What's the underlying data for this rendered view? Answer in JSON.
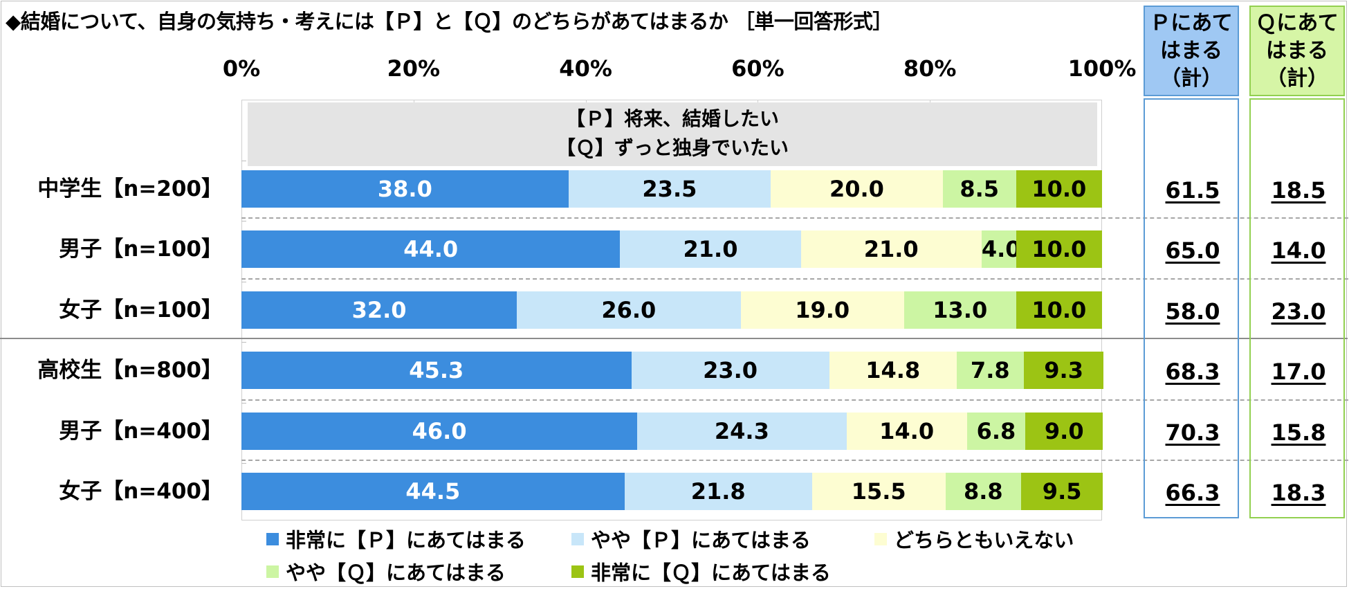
{
  "title": "◆結婚について、自身の気持ち・考えには【Ｐ】と【Ｑ】のどちらがあてはまるか ［単一回答形式］",
  "colors": {
    "p_strong": "#3c8dde",
    "p_some": "#c8e6f9",
    "neutral": "#fdfdd2",
    "q_some": "#ccf5a3",
    "q_strong": "#9cc414",
    "p_total_border": "#5b9bd5",
    "p_total_head": "#9fc8f3",
    "q_total_border": "#92d050",
    "q_total_head": "#d6f5a6"
  },
  "plot_title": [
    "【Ｐ】将来、結婚したい",
    "【Ｑ】ずっと独身でいたい"
  ],
  "totals_headers": {
    "p": [
      "Ｐにあて",
      "はまる",
      "（計）"
    ],
    "q": [
      "Ｑにあて",
      "はまる",
      "（計）"
    ]
  },
  "chart_data": {
    "type": "bar",
    "orientation": "horizontal",
    "stacked": true,
    "xlim": [
      0,
      100
    ],
    "x_ticks": [
      "0%",
      "20%",
      "40%",
      "60%",
      "80%",
      "100%"
    ],
    "categories": [
      "中学生【n=200】",
      "男子【n=100】",
      "女子【n=100】",
      "高校生【n=800】",
      "男子【n=400】",
      "女子【n=400】"
    ],
    "series": [
      {
        "name": "非常に【Ｐ】にあてはまる",
        "values": [
          38.0,
          44.0,
          32.0,
          45.3,
          46.0,
          44.5
        ],
        "labels": [
          "38.0",
          "44.0",
          "32.0",
          "45.3",
          "46.0",
          "44.5"
        ]
      },
      {
        "name": "やや【Ｐ】にあてはまる",
        "values": [
          23.5,
          21.0,
          26.0,
          23.0,
          24.3,
          21.8
        ],
        "labels": [
          "23.5",
          "21.0",
          "26.0",
          "23.0",
          "24.3",
          "21.8"
        ]
      },
      {
        "name": "どちらともいえない",
        "values": [
          20.0,
          21.0,
          19.0,
          14.8,
          14.0,
          15.5
        ],
        "labels": [
          "20.0",
          "21.0",
          "19.0",
          "14.8",
          "14.0",
          "15.5"
        ]
      },
      {
        "name": "やや【Ｑ】にあてはまる",
        "values": [
          8.5,
          4.0,
          13.0,
          7.8,
          6.8,
          8.8
        ],
        "labels": [
          "8.5",
          "4.0",
          "13.0",
          "7.8",
          "6.8",
          "8.8"
        ]
      },
      {
        "name": "非常に【Ｑ】にあてはまる",
        "values": [
          10.0,
          10.0,
          10.0,
          9.3,
          9.0,
          9.5
        ],
        "labels": [
          "10.0",
          "10.0",
          "10.0",
          "9.3",
          "9.0",
          "9.5"
        ]
      }
    ],
    "p_total": [
      "61.5",
      "65.0",
      "58.0",
      "68.3",
      "70.3",
      "66.3"
    ],
    "q_total": [
      "18.5",
      "14.0",
      "23.0",
      "17.0",
      "15.8",
      "18.3"
    ],
    "legend_position": "bottom",
    "grid": false
  }
}
